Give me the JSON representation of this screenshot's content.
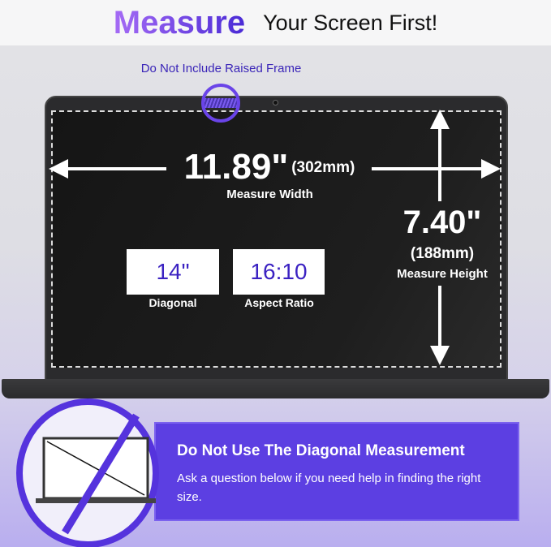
{
  "header": {
    "title_highlight": "Measure",
    "title_rest": "Your Screen First!"
  },
  "frame_note": "Do Not Include Raised Frame",
  "width": {
    "inches": "11.89\"",
    "mm": "(302mm)",
    "label": "Measure Width"
  },
  "height": {
    "inches": "7.40\"",
    "mm": "(188mm)",
    "label": "Measure Height"
  },
  "specs": [
    {
      "value": "14\"",
      "label": "Diagonal"
    },
    {
      "value": "16:10",
      "label": "Aspect Ratio"
    }
  ],
  "banner": {
    "title": "Do Not Use The Diagonal Measurement",
    "text": "Ask a question below if you need help in finding the right size."
  },
  "colors": {
    "accent": "#5c3fe2",
    "text_purple": "#3b22c2"
  }
}
